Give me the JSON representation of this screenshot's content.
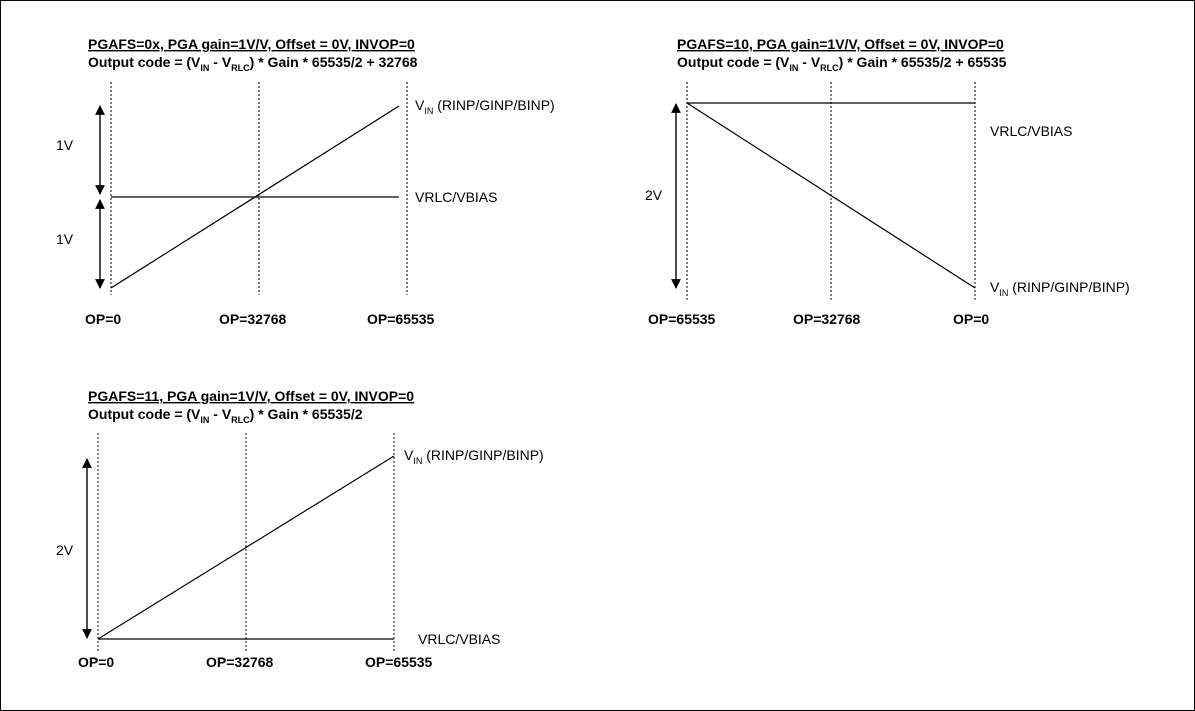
{
  "diagrams": [
    {
      "title": "PGAFS=0x, PGA gain=1V/V, Offset = 0V, INVOP=0",
      "formula": {
        "prefix": "Output code = (V",
        "sub1": "IN",
        "mid": " - V",
        "sub2": "RLC",
        "suffix": ") * Gain * 65535/2 + 32768"
      },
      "vin_label": {
        "v": "V",
        "sub": "IN",
        "rest": " (RINP/GINP/BINP)"
      },
      "ref_label": "VRLC/VBIAS",
      "arrow_labels": [
        "1V",
        "1V"
      ],
      "axis_labels": [
        "OP=0",
        "OP=32768",
        "OP=65535"
      ]
    },
    {
      "title": "PGAFS=10, PGA gain=1V/V, Offset = 0V, INVOP=0",
      "formula": {
        "prefix": "Output code = (V",
        "sub1": "IN",
        "mid": " - V",
        "sub2": "RLC",
        "suffix": ") * Gain * 65535/2 + 65535"
      },
      "vin_label": {
        "v": "V",
        "sub": "IN",
        "rest": " (RINP/GINP/BINP)"
      },
      "ref_label": "VRLC/VBIAS",
      "arrow_labels": [
        "2V"
      ],
      "axis_labels": [
        "OP=65535",
        "OP=32768",
        "OP=0"
      ]
    },
    {
      "title": "PGAFS=11, PGA gain=1V/V, Offset = 0V, INVOP=0",
      "formula": {
        "prefix": "Output code = (V",
        "sub1": "IN",
        "mid": " - V",
        "sub2": "RLC",
        "suffix": ") * Gain * 65535/2"
      },
      "vin_label": {
        "v": "V",
        "sub": "IN",
        "rest": " (RINP/GINP/BINP)"
      },
      "ref_label": "VRLC/VBIAS",
      "arrow_labels": [
        "2V"
      ],
      "axis_labels": [
        "OP=0",
        "OP=32768",
        "OP=65535"
      ]
    }
  ]
}
